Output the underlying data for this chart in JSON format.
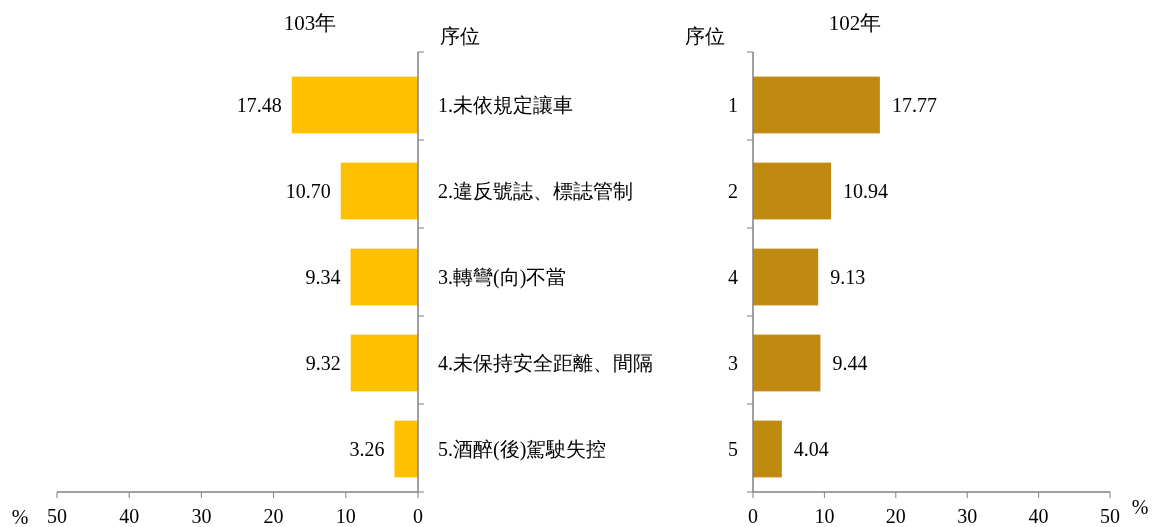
{
  "chart_data": [
    {
      "type": "bar",
      "orientation": "horizontal",
      "title": "103年",
      "ylabel": "序位",
      "xlabel": "%",
      "categories": [
        "1.未依規定讓車",
        "2.違反號誌、標誌管制",
        "3.轉彎(向)不當",
        "4.未保持安全距離、間隔",
        "5.酒醉(後)駕駛失控"
      ],
      "values": [
        17.48,
        10.7,
        9.34,
        9.32,
        3.26
      ],
      "value_labels": [
        "17.48",
        "10.70",
        "9.34",
        "9.32",
        "3.26"
      ],
      "color": "#ffc000",
      "xlim": [
        50,
        0
      ],
      "xticks": [
        50,
        40,
        30,
        20,
        10,
        0
      ]
    },
    {
      "type": "bar",
      "orientation": "horizontal",
      "title": "102年",
      "ylabel": "序位",
      "xlabel": "%",
      "categories": [
        "1",
        "2",
        "4",
        "3",
        "5"
      ],
      "values": [
        17.77,
        10.94,
        9.13,
        9.44,
        4.04
      ],
      "data_labels": true,
      "color": "#c08a10",
      "xlim": [
        0,
        50
      ],
      "xticks": [
        0,
        10,
        20,
        30,
        40,
        50
      ]
    }
  ]
}
